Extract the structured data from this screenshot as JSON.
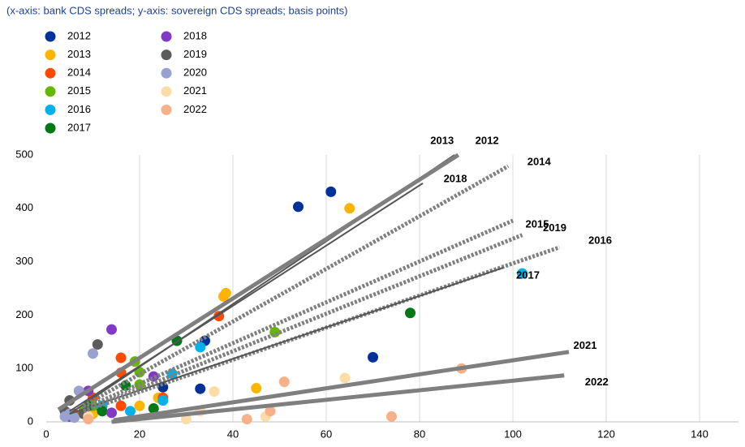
{
  "chart_data": {
    "type": "scatter",
    "subtitle": "(x-axis: bank CDS spreads; y-axis: sovereign CDS spreads; basis points)",
    "xlim": [
      0,
      140
    ],
    "xticks": [
      0,
      20,
      40,
      60,
      80,
      100,
      120,
      140
    ],
    "ylim": [
      0,
      500
    ],
    "yticks": [
      0,
      100,
      200,
      300,
      400,
      500
    ],
    "grid": "x",
    "series": [
      {
        "name": "2012",
        "color": "#003299",
        "x": [
          54,
          61,
          70,
          33,
          34,
          25,
          10,
          6
        ],
        "values": [
          403,
          431,
          121,
          62,
          152,
          65,
          20,
          10
        ],
        "trend": {
          "x": [
            5,
            87.5
          ],
          "y": [
            15,
            500
          ],
          "style": "solid-thin"
        }
      },
      {
        "name": "2013",
        "color": "#ffb400",
        "x": [
          65,
          38,
          38.5,
          45,
          24,
          20,
          10
        ],
        "values": [
          400,
          235,
          241,
          63,
          45,
          30,
          15
        ],
        "trend": {
          "x": [
            2.6,
            88.3
          ],
          "y": [
            23,
            500
          ],
          "style": "solid-thick"
        }
      },
      {
        "name": "2014",
        "color": "#ff4b00",
        "x": [
          37,
          16,
          16,
          25,
          10,
          16,
          6
        ],
        "values": [
          198,
          120,
          92,
          45,
          45,
          30,
          15
        ],
        "trend": {
          "x": [
            8,
            99
          ],
          "y": [
            30,
            479
          ],
          "style": "dotted"
        }
      },
      {
        "name": "2015",
        "color": "#65b800",
        "x": [
          49,
          19,
          20,
          20,
          10,
          8
        ],
        "values": [
          168,
          113,
          93,
          70,
          30,
          20
        ],
        "trend": {
          "x": [
            8,
            100
          ],
          "y": [
            25,
            377
          ],
          "style": "dotted"
        }
      },
      {
        "name": "2016",
        "color": "#00b1ea",
        "x": [
          102,
          33,
          27,
          25,
          18,
          12,
          5
        ],
        "values": [
          278,
          140,
          90,
          40,
          20,
          30,
          10
        ],
        "trend": {
          "x": [
            8,
            110
          ],
          "y": [
            20,
            327
          ],
          "style": "dotted"
        }
      },
      {
        "name": "2017",
        "color": "#007816",
        "x": [
          78,
          28,
          17,
          23,
          9,
          12
        ],
        "values": [
          204,
          152,
          68,
          25,
          30,
          20
        ],
        "trend": {
          "x": [
            5,
            98
          ],
          "y": [
            15,
            289
          ],
          "style": "solid-thin"
        }
      },
      {
        "name": "2018",
        "color": "#8139c6",
        "x": [
          14,
          23,
          9,
          14,
          5
        ],
        "values": [
          173,
          85,
          58,
          17,
          10
        ],
        "trend": {
          "x": [
            5,
            80.7
          ],
          "y": [
            20,
            447
          ],
          "style": "solid-thin"
        }
      },
      {
        "name": "2019",
        "color": "#5c5c5c",
        "x": [
          11,
          5,
          4,
          8
        ],
        "values": [
          145,
          40,
          20,
          15
        ],
        "trend": {
          "x": [
            8,
            102
          ],
          "y": [
            20,
            350
          ],
          "style": "dotted"
        }
      },
      {
        "name": "2020",
        "color": "#98a1d0",
        "x": [
          10,
          7,
          5,
          6,
          4
        ],
        "values": [
          128,
          58,
          15,
          8,
          10
        ]
      },
      {
        "name": "2021",
        "color": "#fddda7",
        "x": [
          64,
          36,
          30,
          47,
          33,
          9
        ],
        "values": [
          82,
          57,
          5,
          10,
          20,
          10
        ],
        "trend": {
          "x": [
            14.4,
            112
          ],
          "y": [
            3,
            131
          ],
          "style": "solid-thick"
        }
      },
      {
        "name": "2022",
        "color": "#f6b189",
        "x": [
          89,
          51,
          74,
          43,
          48,
          9
        ],
        "values": [
          100,
          75,
          10,
          5,
          20,
          5
        ],
        "trend": {
          "x": [
            14,
            111
          ],
          "y": [
            0,
            87
          ],
          "style": "solid-thick"
        }
      }
    ]
  }
}
